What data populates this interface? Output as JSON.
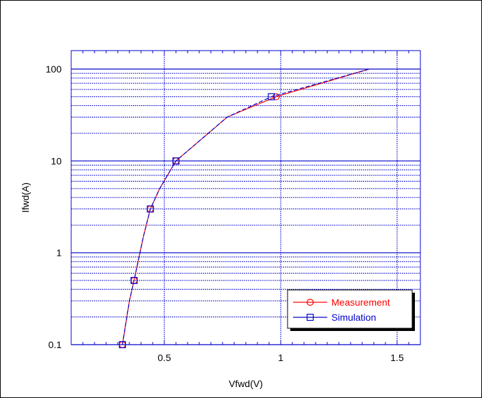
{
  "chart_data": {
    "type": "line",
    "xlabel": "Vfwd(V)",
    "ylabel": "Ifwd(A)",
    "xlim": [
      0.1,
      1.6
    ],
    "ylim": [
      0.1,
      100
    ],
    "yscale": "log",
    "grid": true,
    "x_ticks": [
      0.5,
      1,
      1.5
    ],
    "x_tick_labels": [
      "0.5",
      "1",
      "1.5"
    ],
    "y_ticks": [
      0.1,
      1,
      10,
      100
    ],
    "y_tick_labels": [
      "0.1",
      "1",
      "10",
      "100"
    ],
    "legend_position": "bottom-right",
    "series": [
      {
        "name": "Measurement",
        "color": "#ff0000",
        "marker": "circle",
        "x": [
          0.32,
          0.37,
          0.44,
          0.55,
          0.98
        ],
        "y": [
          0.1,
          0.5,
          3,
          10,
          50
        ],
        "curve_x": [
          0.32,
          0.35,
          0.37,
          0.41,
          0.44,
          0.48,
          0.55,
          0.77,
          0.98,
          1.38
        ],
        "curve_y": [
          0.1,
          0.3,
          0.5,
          1.5,
          3,
          5,
          10,
          30,
          50,
          100
        ]
      },
      {
        "name": "Simulation",
        "color": "#0000cc",
        "marker": "square",
        "x": [
          0.32,
          0.37,
          0.44,
          0.55,
          0.96
        ],
        "y": [
          0.1,
          0.5,
          3,
          10,
          50
        ],
        "curve_x": [
          0.32,
          0.35,
          0.37,
          0.41,
          0.44,
          0.48,
          0.55,
          0.77,
          0.96,
          1.38
        ],
        "curve_y": [
          0.1,
          0.3,
          0.5,
          1.5,
          3,
          5,
          10,
          30,
          50,
          100
        ]
      }
    ]
  }
}
